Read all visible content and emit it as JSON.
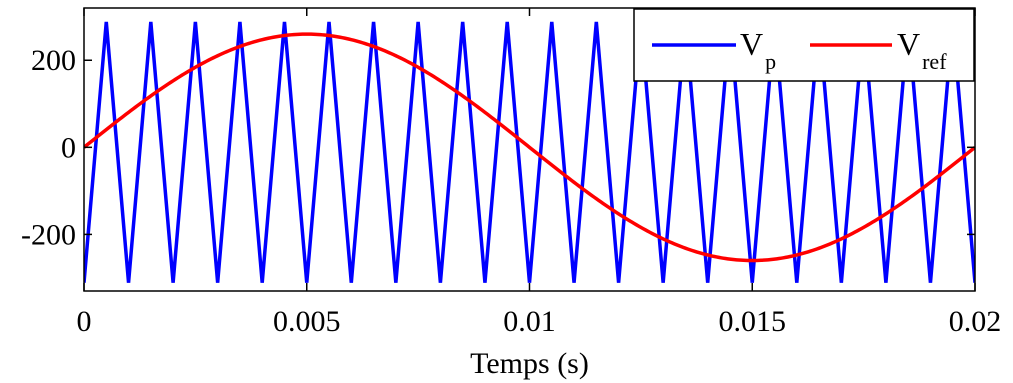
{
  "chart_data": {
    "type": "line",
    "xlabel": "Temps (s)",
    "ylabel": "",
    "xlim": [
      0,
      0.02
    ],
    "ylim": [
      -330,
      320
    ],
    "x_ticks": [
      0,
      0.005,
      0.01,
      0.015,
      0.02
    ],
    "x_tick_labels": [
      "0",
      "0.005",
      "0.01",
      "0.015",
      "0.02"
    ],
    "y_ticks": [
      -200,
      0,
      200
    ],
    "y_tick_labels": [
      "-200",
      "0",
      "200"
    ],
    "grid": false,
    "legend_placement": "top-right",
    "series": [
      {
        "name": "V_p",
        "legend_main": "V",
        "legend_sub": "p",
        "color": "#0000ff",
        "kind": "triangle",
        "frequency_hz": 1000,
        "min": -311,
        "max": 288,
        "values_x": [
          0,
          0.0005,
          0.001,
          0.0015,
          0.002,
          0.0025,
          0.003,
          0.0035,
          0.004,
          0.0045,
          0.005,
          0.0055,
          0.006,
          0.0065,
          0.007,
          0.0075,
          0.008,
          0.0085,
          0.009,
          0.0095,
          0.01,
          0.0105,
          0.011,
          0.0115,
          0.012,
          0.0125,
          0.013,
          0.0135,
          0.014,
          0.0145,
          0.015,
          0.0155,
          0.016,
          0.0165,
          0.017,
          0.0175,
          0.018,
          0.0185,
          0.019,
          0.0195,
          0.02
        ],
        "values_y": [
          -311,
          288,
          -311,
          288,
          -311,
          288,
          -311,
          288,
          -311,
          288,
          -311,
          288,
          -311,
          288,
          -311,
          288,
          -311,
          288,
          -311,
          288,
          -311,
          288,
          -311,
          288,
          -311,
          288,
          -311,
          288,
          -311,
          288,
          -311,
          288,
          -311,
          288,
          -311,
          288,
          -311,
          288,
          -311,
          288,
          -311
        ]
      },
      {
        "name": "V_ref",
        "legend_main": "V",
        "legend_sub": "ref",
        "color": "#ff0000",
        "kind": "sine",
        "amplitude": 260,
        "frequency_hz": 50,
        "offset": 0,
        "x_range": [
          0,
          0.02
        ]
      }
    ]
  }
}
